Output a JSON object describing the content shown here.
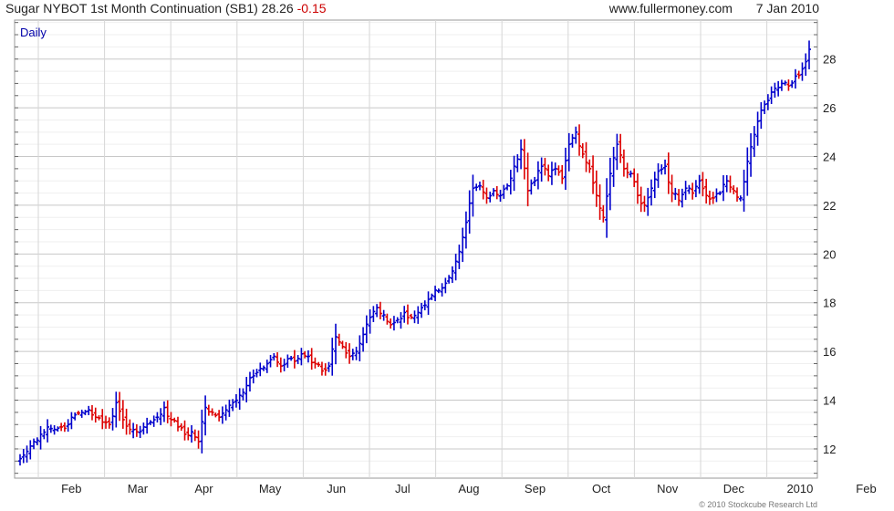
{
  "header": {
    "title": "Sugar NYBOT 1st Month Continuation (SB1)",
    "last": "28.26",
    "change": "-0.15",
    "site": "www.fullermoney.com",
    "date": "7 Jan 2010"
  },
  "copyright": "© 2010 Stockcube Research Ltd",
  "colors": {
    "up": "#0000cc",
    "down": "#dd0000",
    "grid": "#d6d6d6",
    "frame": "#9a9a9a",
    "label": "#0000aa"
  },
  "chart_data": {
    "type": "ohlc",
    "timeframe_label": "Daily",
    "ylim": [
      10.8,
      29.6
    ],
    "yticks": [
      12,
      14,
      16,
      18,
      20,
      22,
      24,
      26,
      28
    ],
    "months": [
      "Feb",
      "Mar",
      "Apr",
      "May",
      "Jun",
      "Jul",
      "Aug",
      "Sep",
      "Oct",
      "Nov",
      "Dec",
      "2010",
      "Feb"
    ],
    "closes_every_2_sessions": [
      11.6,
      11.9,
      12.3,
      12.6,
      12.9,
      12.8,
      12.9,
      13.0,
      13.4,
      13.5,
      13.6,
      13.3,
      13.1,
      13.0,
      13.9,
      13.2,
      12.8,
      12.7,
      12.9,
      13.1,
      13.3,
      13.7,
      13.2,
      12.9,
      12.6,
      12.7,
      12.3,
      13.7,
      13.5,
      13.3,
      13.6,
      13.9,
      14.2,
      14.6,
      15.0,
      15.3,
      15.5,
      15.8,
      15.4,
      15.7,
      15.6,
      15.9,
      15.8,
      15.5,
      15.2,
      15.4,
      16.6,
      16.2,
      15.8,
      16.0,
      16.7,
      17.4,
      17.8,
      17.5,
      17.1,
      17.3,
      17.6,
      17.4,
      17.6,
      17.9,
      18.3,
      18.5,
      18.8,
      19.3,
      20.1,
      21.3,
      22.7,
      22.8,
      22.3,
      22.6,
      22.4,
      22.8,
      23.6,
      24.3,
      22.6,
      23.0,
      23.6,
      23.2,
      23.5,
      23.1,
      24.5,
      25.0,
      24.1,
      23.5,
      22.4,
      21.5,
      23.3,
      24.5,
      23.5,
      23.3,
      22.4,
      22.0,
      22.7,
      23.4,
      23.6,
      22.5,
      22.2,
      22.7,
      22.5,
      23.0,
      22.4,
      22.3,
      22.5,
      23.0,
      22.6,
      22.3,
      23.8,
      24.9,
      25.9,
      26.3,
      26.8,
      27.0,
      26.9,
      27.3,
      27.6,
      28.4
    ]
  }
}
